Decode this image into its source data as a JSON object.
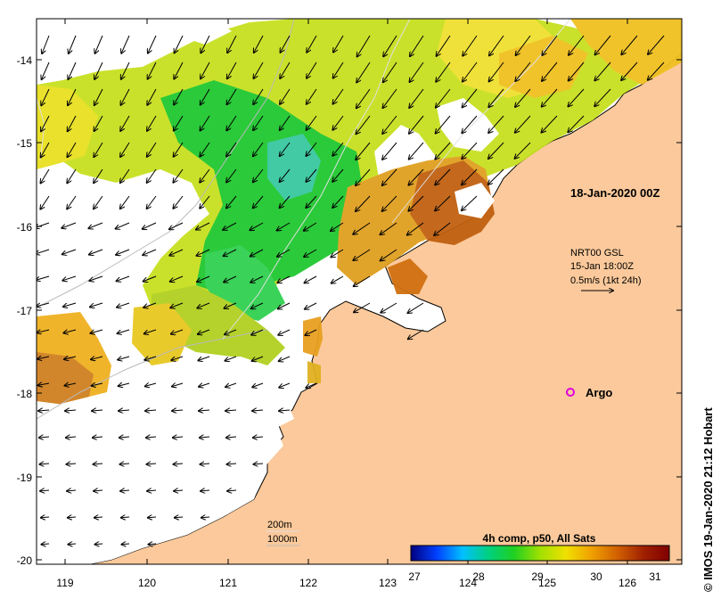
{
  "map": {
    "x_ticks": [
      "119",
      "120",
      "121",
      "122",
      "123",
      "124",
      "125",
      "126"
    ],
    "y_ticks": [
      "-14",
      "-15",
      "-16",
      "-17",
      "-18",
      "-19",
      "-20"
    ],
    "timestamp_label": "18-Jan-2020 00Z",
    "current_legend": {
      "line1": "NRT00 GSL",
      "line2": "15-Jan 18:00Z",
      "line3": "0.5m/s (1kt 24h)"
    },
    "argo_label": "Argo",
    "contour_legend": {
      "shallow": "200m",
      "deep": "1000m"
    },
    "colorbar": {
      "title": "4h comp, p50, All Sats",
      "ticks": [
        "27",
        "28",
        "29",
        "30",
        "31"
      ],
      "colors": [
        "#00007f",
        "#0040ff",
        "#00c0ff",
        "#00d080",
        "#20d020",
        "#a0e000",
        "#f0e000",
        "#f0a000",
        "#d06000",
        "#a02000",
        "#800000"
      ]
    },
    "credit": "© IMOS 19-Jan-2020 21:12 Hobart",
    "colors": {
      "land": "#fbc99b",
      "frame": "#000000",
      "argo": "#e000e0"
    }
  }
}
